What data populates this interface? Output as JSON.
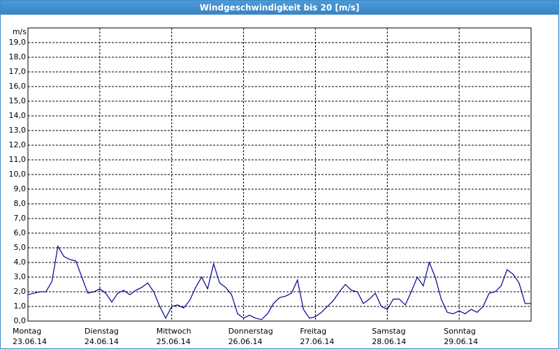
{
  "chart_data": {
    "type": "line",
    "title": "Windgeschwindigkeit bis 20 [m/s]",
    "y_unit": "m/s",
    "x": [
      0,
      2,
      4,
      6,
      8,
      10,
      12,
      14,
      16,
      18,
      20,
      22,
      24,
      26,
      28,
      30,
      32,
      34,
      36,
      38,
      40,
      42,
      44,
      46,
      48,
      50,
      52,
      54,
      56,
      58,
      60,
      62,
      64,
      66,
      68,
      70,
      72,
      74,
      76,
      78,
      80,
      82,
      84,
      86,
      88,
      90,
      92,
      94,
      96,
      98,
      100,
      102,
      104,
      106,
      108,
      110,
      112,
      114,
      116,
      118,
      120,
      122,
      124,
      126,
      128,
      130,
      132,
      134,
      136,
      138,
      140,
      142,
      144,
      146,
      148,
      150,
      152,
      154,
      156,
      158,
      160,
      162,
      164,
      166,
      168
    ],
    "series": [
      {
        "name": "Windgeschwindigkeit",
        "color": "#00008b",
        "values": [
          1.8,
          1.9,
          2.0,
          2.0,
          2.7,
          5.1,
          4.4,
          4.2,
          4.1,
          3.0,
          1.9,
          2.0,
          2.2,
          1.9,
          1.3,
          1.9,
          2.1,
          1.8,
          2.1,
          2.3,
          2.6,
          2.0,
          1.0,
          0.2,
          1.0,
          1.1,
          0.9,
          1.4,
          2.3,
          3.0,
          2.2,
          3.9,
          2.6,
          2.3,
          1.8,
          0.5,
          0.2,
          0.4,
          0.2,
          0.1,
          0.5,
          1.2,
          1.6,
          1.7,
          1.9,
          2.8,
          0.8,
          0.2,
          0.3,
          0.6,
          1.0,
          1.4,
          2.0,
          2.5,
          2.1,
          2.0,
          1.2,
          1.5,
          1.9,
          1.0,
          0.8,
          1.5,
          1.5,
          1.1,
          2.0,
          3.0,
          2.4,
          4.0,
          3.0,
          1.5,
          0.6,
          0.5,
          0.7,
          0.5,
          0.8,
          0.6,
          1.0,
          1.9,
          2.0,
          2.4,
          3.5,
          3.2,
          2.6,
          1.2,
          1.2
        ]
      }
    ],
    "xlim": [
      0,
      168
    ],
    "xticks": [
      0,
      24,
      48,
      72,
      96,
      120,
      144
    ],
    "x_tick_days": [
      "Montag",
      "Dienstag",
      "Mittwoch",
      "Donnerstag",
      "Freitag",
      "Samstag",
      "Sonntag"
    ],
    "x_tick_dates": [
      "23.06.14",
      "24.06.14",
      "25.06.14",
      "26.06.14",
      "27.06.14",
      "28.06.14",
      "29.06.14"
    ],
    "ylim": [
      0,
      20
    ],
    "yticks": [
      {
        "value": 0,
        "label": "0,0"
      },
      {
        "value": 1,
        "label": "1,0"
      },
      {
        "value": 2,
        "label": "2,0"
      },
      {
        "value": 3,
        "label": "3,0"
      },
      {
        "value": 4,
        "label": "4,0"
      },
      {
        "value": 5,
        "label": "5,0"
      },
      {
        "value": 6,
        "label": "6,0"
      },
      {
        "value": 7,
        "label": "7,0"
      },
      {
        "value": 8,
        "label": "8,0"
      },
      {
        "value": 9,
        "label": "9,0"
      },
      {
        "value": 10,
        "label": "10,0"
      },
      {
        "value": 11,
        "label": "11,0"
      },
      {
        "value": 12,
        "label": "12,0"
      },
      {
        "value": 13,
        "label": "13,0"
      },
      {
        "value": 14,
        "label": "14,0"
      },
      {
        "value": 15,
        "label": "15,0"
      },
      {
        "value": 16,
        "label": "16,0"
      },
      {
        "value": 17,
        "label": "17,0"
      },
      {
        "value": 18,
        "label": "18,0"
      },
      {
        "value": 19,
        "label": "19,0"
      }
    ],
    "grid": true
  }
}
